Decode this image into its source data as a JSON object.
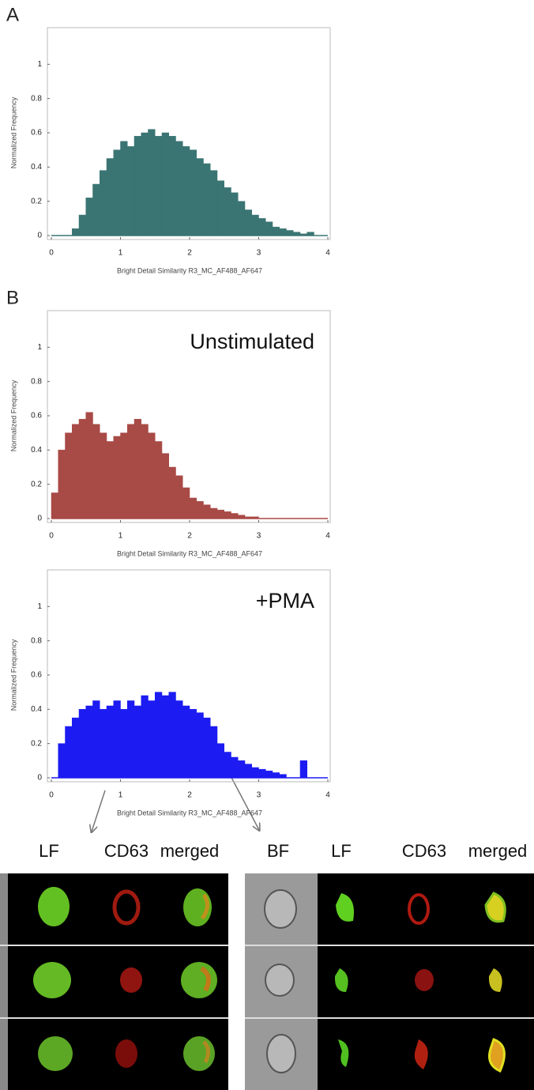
{
  "labels": {
    "panel_a": "A",
    "panel_b": "B",
    "left_columns": [
      "LF",
      "CD63",
      "merged"
    ],
    "right_columns": [
      "BF",
      "LF",
      "CD63",
      "merged"
    ]
  },
  "chart_data": [
    {
      "type": "histogram",
      "xlabel": "Bright Detail Similarity R3_MC_AF488_AF647",
      "ylabel": "Normalized Frequency",
      "color": "#3a7573",
      "bins": [
        0,
        0.1,
        0.2,
        0.3,
        0.4,
        0.5,
        0.6,
        0.7,
        0.8,
        0.9,
        1,
        1.1,
        1.2,
        1.3,
        1.4,
        1.5,
        1.6,
        1.7,
        1.8,
        1.9,
        2,
        2.1,
        2.2,
        2.3,
        2.4,
        2.5,
        2.6,
        2.7,
        2.8,
        2.9,
        3,
        3.1,
        3.2,
        3.3,
        3.4,
        3.5,
        3.6,
        3.7,
        3.8,
        3.9,
        4
      ],
      "values": [
        0,
        0,
        0,
        0.04,
        0.12,
        0.22,
        0.3,
        0.38,
        0.45,
        0.5,
        0.55,
        0.52,
        0.58,
        0.6,
        0.62,
        0.58,
        0.6,
        0.58,
        0.55,
        0.52,
        0.5,
        0.45,
        0.42,
        0.38,
        0.32,
        0.28,
        0.25,
        0.2,
        0.15,
        0.12,
        0.1,
        0.08,
        0.05,
        0.04,
        0.03,
        0.02,
        0.01,
        0.02,
        0,
        0
      ],
      "xlim": [
        0,
        4
      ],
      "ylim": [
        0,
        1.2
      ],
      "xticks": [
        0,
        1,
        2,
        3,
        4
      ],
      "yticks": [
        0,
        0.2,
        0.4,
        0.6,
        0.8,
        1
      ]
    },
    {
      "type": "histogram",
      "annotation": "Unstimulated",
      "xlabel": "Bright Detail Similarity R3_MC_AF488_AF647",
      "ylabel": "Normalized Frequency",
      "color": "#a84a46",
      "bins": [
        0,
        0.1,
        0.2,
        0.3,
        0.4,
        0.5,
        0.6,
        0.7,
        0.8,
        0.9,
        1,
        1.1,
        1.2,
        1.3,
        1.4,
        1.5,
        1.6,
        1.7,
        1.8,
        1.9,
        2,
        2.1,
        2.2,
        2.3,
        2.4,
        2.5,
        2.6,
        2.7,
        2.8,
        2.9,
        3,
        3.1,
        3.2,
        3.3,
        3.4,
        3.5,
        3.6,
        3.7,
        3.8,
        3.9,
        4
      ],
      "values": [
        0.15,
        0.4,
        0.5,
        0.55,
        0.58,
        0.62,
        0.55,
        0.5,
        0.45,
        0.48,
        0.5,
        0.55,
        0.58,
        0.55,
        0.5,
        0.45,
        0.38,
        0.3,
        0.25,
        0.18,
        0.12,
        0.1,
        0.08,
        0.06,
        0.05,
        0.04,
        0.03,
        0.02,
        0.01,
        0.01,
        0,
        0,
        0,
        0,
        0,
        0,
        0,
        0,
        0,
        0
      ],
      "xlim": [
        0,
        4
      ],
      "ylim": [
        0,
        1.2
      ],
      "xticks": [
        0,
        1,
        2,
        3,
        4
      ],
      "yticks": [
        0,
        0.2,
        0.4,
        0.6,
        0.8,
        1
      ]
    },
    {
      "type": "histogram",
      "annotation": "+PMA",
      "xlabel": "Bright Detail Similarity R3_MC_AF488_AF647",
      "ylabel": "Normalized Frequency",
      "color": "#1c1cf2",
      "bins": [
        0,
        0.1,
        0.2,
        0.3,
        0.4,
        0.5,
        0.6,
        0.7,
        0.8,
        0.9,
        1,
        1.1,
        1.2,
        1.3,
        1.4,
        1.5,
        1.6,
        1.7,
        1.8,
        1.9,
        2,
        2.1,
        2.2,
        2.3,
        2.4,
        2.5,
        2.6,
        2.7,
        2.8,
        2.9,
        3,
        3.1,
        3.2,
        3.3,
        3.4,
        3.5,
        3.6,
        3.7,
        3.8,
        3.9,
        4
      ],
      "values": [
        0,
        0.2,
        0.3,
        0.35,
        0.4,
        0.42,
        0.45,
        0.4,
        0.42,
        0.45,
        0.4,
        0.45,
        0.42,
        0.48,
        0.45,
        0.5,
        0.48,
        0.5,
        0.45,
        0.42,
        0.4,
        0.38,
        0.35,
        0.3,
        0.2,
        0.15,
        0.12,
        0.1,
        0.08,
        0.06,
        0.05,
        0.04,
        0.03,
        0.02,
        0,
        0,
        0.1,
        0,
        0,
        0
      ],
      "xlim": [
        0,
        4
      ],
      "ylim": [
        0,
        1.2
      ],
      "xticks": [
        0,
        1,
        2,
        3,
        4
      ],
      "yticks": [
        0,
        0.2,
        0.4,
        0.6,
        0.8,
        1
      ]
    }
  ]
}
